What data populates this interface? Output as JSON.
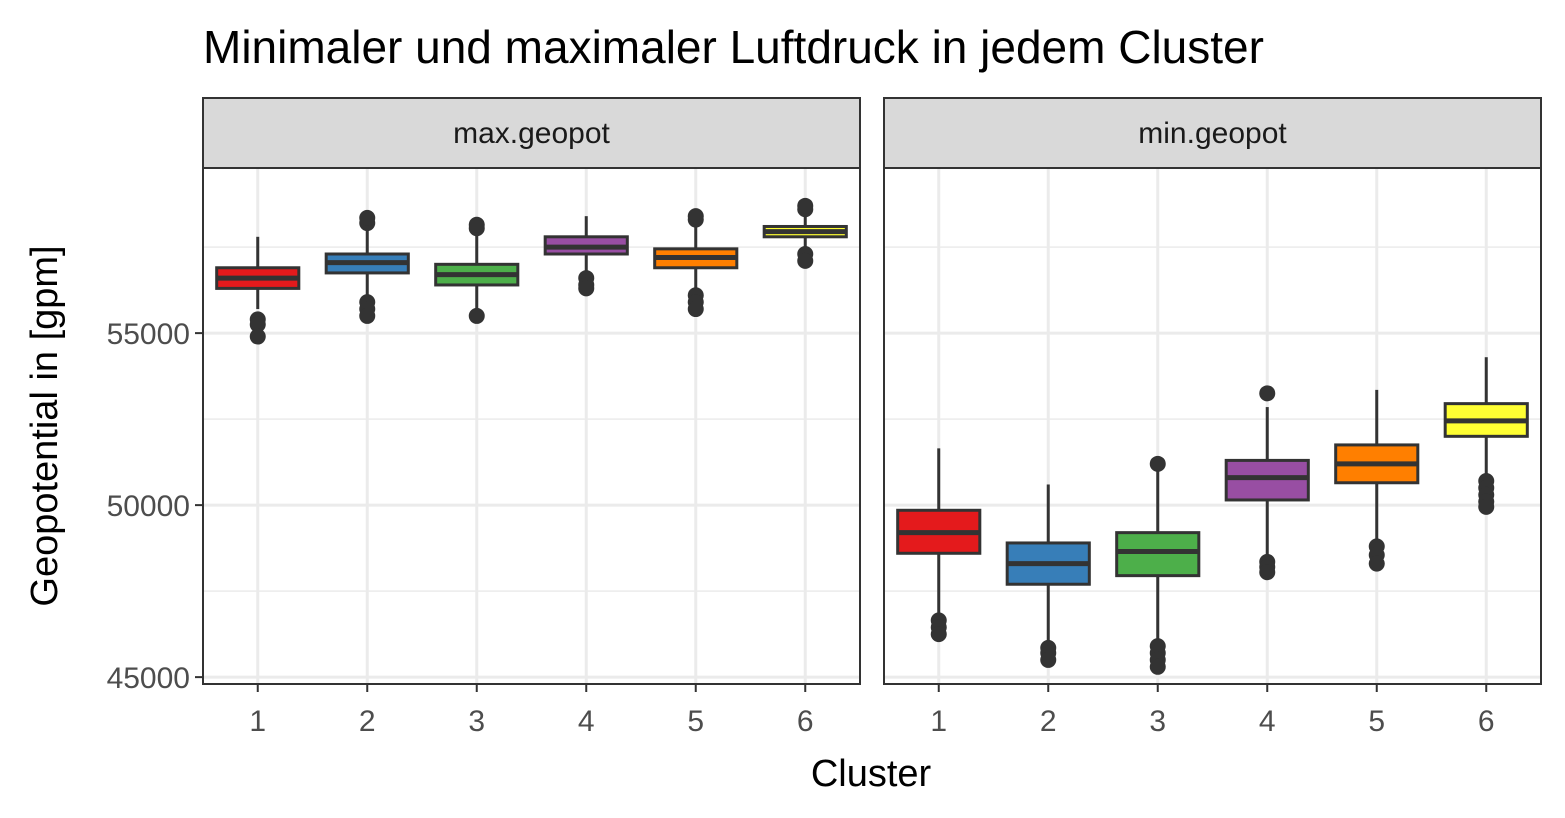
{
  "chart_data": {
    "type": "boxplot",
    "title": "Minimaler und maximaler Luftdruck in jedem Cluster",
    "xlabel": "Cluster",
    "ylabel": "Geopotential in [gpm]",
    "categories": [
      "1",
      "2",
      "3",
      "4",
      "5",
      "6"
    ],
    "ylim": [
      44800,
      59800
    ],
    "yticks": [
      45000,
      50000,
      55000
    ],
    "y_tick_labels": [
      "45000",
      "50000",
      "55000"
    ],
    "grid": true,
    "legend": "none",
    "colors": [
      "#E41A1C",
      "#377EB8",
      "#4DAF4A",
      "#984EA3",
      "#FF7F00",
      "#FFFF33"
    ],
    "panels": [
      {
        "label": "max.geopot",
        "boxes": [
          {
            "cluster": "1",
            "whisker_low": 55700,
            "q1": 56300,
            "median": 56600,
            "q3": 56900,
            "whisker_high": 57800,
            "outliers": [
              55400,
              55250,
              54900
            ]
          },
          {
            "cluster": "2",
            "whisker_low": 56000,
            "q1": 56750,
            "median": 57050,
            "q3": 57300,
            "whisker_high": 58100,
            "outliers": [
              55900,
              55700,
              55500,
              58200,
              58350
            ]
          },
          {
            "cluster": "3",
            "whisker_low": 55700,
            "q1": 56400,
            "median": 56700,
            "q3": 57000,
            "whisker_high": 57900,
            "outliers": [
              55500,
              58050,
              58150
            ]
          },
          {
            "cluster": "4",
            "whisker_low": 56700,
            "q1": 57300,
            "median": 57500,
            "q3": 57800,
            "whisker_high": 58400,
            "outliers": [
              56600,
              56400,
              56300
            ]
          },
          {
            "cluster": "5",
            "whisker_low": 56100,
            "q1": 56900,
            "median": 57200,
            "q3": 57450,
            "whisker_high": 58200,
            "outliers": [
              56100,
              55900,
              55700,
              58300,
              58400
            ]
          },
          {
            "cluster": "6",
            "whisker_low": 57400,
            "q1": 57800,
            "median": 57950,
            "q3": 58100,
            "whisker_high": 58500,
            "outliers": [
              57300,
              57100,
              58600,
              58700
            ]
          }
        ]
      },
      {
        "label": "min.geopot",
        "boxes": [
          {
            "cluster": "1",
            "whisker_low": 46800,
            "q1": 48600,
            "median": 49200,
            "q3": 49850,
            "whisker_high": 51650,
            "outliers": [
              46650,
              46450,
              46250
            ]
          },
          {
            "cluster": "2",
            "whisker_low": 46000,
            "q1": 47700,
            "median": 48300,
            "q3": 48900,
            "whisker_high": 50600,
            "outliers": [
              45850,
              45700,
              45500
            ]
          },
          {
            "cluster": "3",
            "whisker_low": 46000,
            "q1": 47950,
            "median": 48650,
            "q3": 49200,
            "whisker_high": 51000,
            "outliers": [
              45900,
              45700,
              45500,
              45300,
              51200
            ]
          },
          {
            "cluster": "4",
            "whisker_low": 48500,
            "q1": 50150,
            "median": 50800,
            "q3": 51300,
            "whisker_high": 52850,
            "outliers": [
              48350,
              48200,
              48050,
              53250
            ]
          },
          {
            "cluster": "5",
            "whisker_low": 49000,
            "q1": 50650,
            "median": 51200,
            "q3": 51750,
            "whisker_high": 53350,
            "outliers": [
              48800,
              48550,
              48300
            ]
          },
          {
            "cluster": "6",
            "whisker_low": 50800,
            "q1": 52000,
            "median": 52450,
            "q3": 52950,
            "whisker_high": 54300,
            "outliers": [
              50700,
              50500,
              50300,
              50100,
              49950
            ]
          }
        ]
      }
    ]
  }
}
